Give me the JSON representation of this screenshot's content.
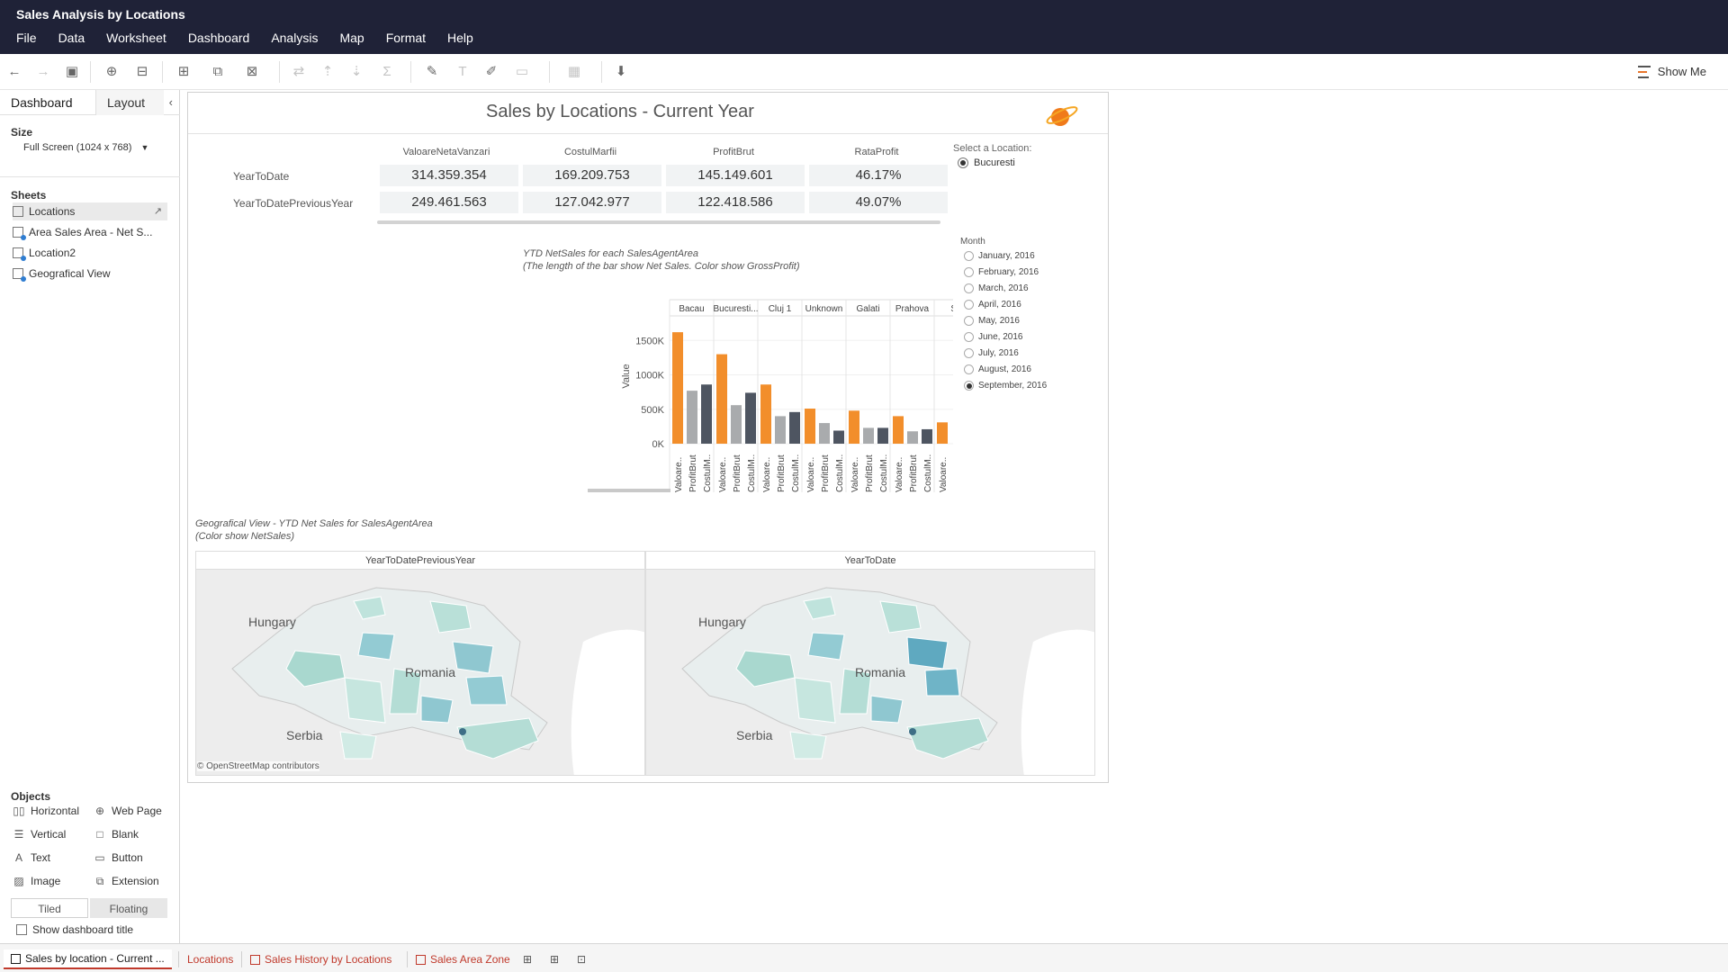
{
  "app": {
    "title": "Sales Analysis by Locations"
  },
  "menu": [
    "File",
    "Data",
    "Worksheet",
    "Dashboard",
    "Analysis",
    "Map",
    "Format",
    "Help"
  ],
  "toolbar": {
    "show_me": "Show Me"
  },
  "left_panel": {
    "tab_dashboard": "Dashboard",
    "tab_layout": "Layout",
    "size_heading": "Size",
    "size_value": "Full Screen (1024 x 768)",
    "sheets_heading": "Sheets",
    "sheets": [
      "Locations",
      "Area Sales Area - Net S...",
      "Location2",
      "Geografical View"
    ],
    "objects_heading": "Objects",
    "objects": [
      "Horizontal",
      "Web Page",
      "Vertical",
      "Blank",
      "Text",
      "Button",
      "Image",
      "Extension"
    ],
    "tiled": "Tiled",
    "floating": "Floating",
    "show_title": "Show dashboard title"
  },
  "dashboard": {
    "title": "Sales by Locations - Current Year",
    "kpi": {
      "columns": [
        "ValoareNetaVanzari",
        "CostulMarfii",
        "ProfitBrut",
        "RataProfit"
      ],
      "rows": [
        {
          "label": "YearToDate",
          "values": [
            "314.359.354",
            "169.209.753",
            "145.149.601",
            "46.17%"
          ]
        },
        {
          "label": "YearToDatePreviousYear",
          "values": [
            "249.461.563",
            "127.042.977",
            "122.418.586",
            "49.07%"
          ]
        }
      ]
    },
    "location_filter": {
      "title": "Select a Location:",
      "selected": "Bucuresti"
    },
    "month_filter": {
      "title": "Month",
      "options": [
        "January, 2016",
        "February, 2016",
        "March, 2016",
        "April, 2016",
        "May, 2016",
        "June, 2016",
        "July, 2016",
        "August, 2016",
        "September, 2016"
      ],
      "selected_index": 8
    },
    "bar_caption_1": "YTD NetSales for each SalesAgentArea",
    "bar_caption_2": "(The length of the bar show Net Sales. Color show GrossProfit)",
    "map_caption_1": "Geografical View - YTD Net Sales for SalesAgentArea",
    "map_caption_2": "(Color show NetSales)",
    "maps": [
      {
        "header": "YearToDatePreviousYear",
        "labels": [
          "Hungary",
          "Romania",
          "Serbia"
        ]
      },
      {
        "header": "YearToDate",
        "labels": [
          "Hungary",
          "Romania",
          "Serbia"
        ]
      }
    ],
    "map_attribution": "© OpenStreetMap contributors"
  },
  "chart_data": {
    "type": "bar",
    "ylabel": "Value",
    "ylim": [
      0,
      1700000
    ],
    "yticks": [
      0,
      500000,
      1000000,
      1500000
    ],
    "ytick_labels": [
      "0K",
      "500K",
      "1000K",
      "1500K"
    ],
    "panes": [
      "Bacau",
      "Bucuresti...",
      "Cluj 1",
      "Unknown",
      "Galati",
      "Prahova",
      "Su"
    ],
    "bar_labels": [
      "Valoare..",
      "ProfitBrut",
      "CostulM.."
    ],
    "colors": {
      "Valoare..": "#f28e2b",
      "ProfitBrut": "#a9abad",
      "CostulM..": "#4e5561"
    },
    "series": [
      {
        "name": "Valoare..",
        "values": [
          1620000,
          1300000,
          860000,
          510000,
          480000,
          400000,
          310000
        ]
      },
      {
        "name": "ProfitBrut",
        "values": [
          770000,
          560000,
          400000,
          300000,
          230000,
          180000,
          null
        ]
      },
      {
        "name": "CostulM..",
        "values": [
          860000,
          740000,
          460000,
          190000,
          230000,
          210000,
          null
        ]
      }
    ]
  },
  "sheet_tabs": [
    "Sales by location - Current ...",
    "Locations",
    "Sales History by Locations",
    "Sales Area Zone"
  ],
  "colors": {
    "accent": "#f28e2b",
    "titlebar": "#1f2237",
    "tab_red": "#c0392b"
  }
}
